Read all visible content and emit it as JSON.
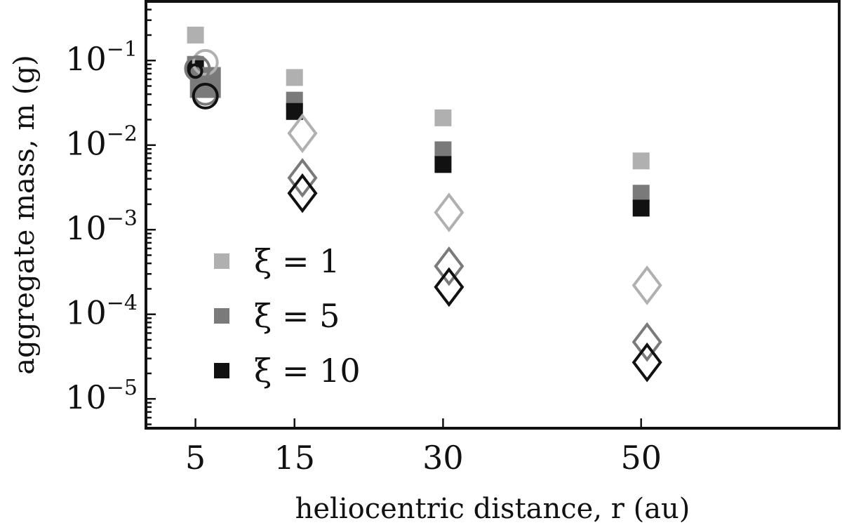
{
  "chart_data": {
    "type": "scatter",
    "xlabel": "heliocentric distance, r (au)",
    "ylabel": "aggregate mass, m (g)",
    "x_ticks": [
      {
        "value": 5,
        "label": "5"
      },
      {
        "value": 15,
        "label": "15"
      },
      {
        "value": 30,
        "label": "30"
      },
      {
        "value": 50,
        "label": "50"
      }
    ],
    "x_range": [
      0,
      70
    ],
    "y_scale": "log",
    "y_range": [
      4.5e-06,
      0.5
    ],
    "y_ticks": [
      {
        "value": 0.1,
        "base": "10",
        "exp": "−1"
      },
      {
        "value": 0.01,
        "base": "10",
        "exp": "−2"
      },
      {
        "value": 0.001,
        "base": "10",
        "exp": "−3"
      },
      {
        "value": 0.0001,
        "base": "10",
        "exp": "−4"
      },
      {
        "value": 1e-05,
        "base": "10",
        "exp": "−5"
      }
    ],
    "legend": {
      "position": "lower-left",
      "entries": [
        {
          "label": "ξ = 1",
          "color": "#b0b0b0"
        },
        {
          "label": "ξ = 5",
          "color": "#7a7a7a"
        },
        {
          "label": "ξ = 10",
          "color": "#111111"
        }
      ]
    },
    "series": [
      {
        "name": "ξ = 1",
        "color": "#b0b0b0",
        "marker": "square",
        "x": [
          5,
          15,
          30,
          50
        ],
        "y": [
          0.2,
          0.063,
          0.021,
          0.0065
        ]
      },
      {
        "name": "ξ = 5",
        "color": "#7a7a7a",
        "marker": "square",
        "x": [
          5,
          15,
          30,
          50
        ],
        "y": [
          0.09,
          0.034,
          0.0088,
          0.0027
        ]
      },
      {
        "name": "ξ = 10",
        "color": "#111111",
        "marker": "square",
        "x": [
          5,
          15,
          30,
          50
        ],
        "y": [
          0.08,
          0.025,
          0.0059,
          0.0018
        ]
      },
      {
        "name": "",
        "color": "#7a7a7a",
        "marker": "filled-square-large",
        "x": [
          6
        ],
        "y": [
          0.055
        ]
      },
      {
        "name": "",
        "color": "#b0b0b0",
        "marker": "open-circle",
        "x": [
          6,
          15.8,
          30.6,
          50.6
        ],
        "y": [
          0.095,
          0.0138,
          0.0016,
          0.00022
        ],
        "shapes": [
          "circle",
          "diamond",
          "diamond",
          "diamond"
        ]
      },
      {
        "name": "",
        "color": "#7a7a7a",
        "marker": "open-circle",
        "x": [
          5.2,
          6,
          15.8,
          30.6,
          50.6
        ],
        "y": [
          0.08,
          0.042,
          0.0041,
          0.00037,
          4.7e-05
        ],
        "shapes": [
          "circle",
          "circle",
          "diamond",
          "diamond",
          "diamond"
        ]
      },
      {
        "name": "",
        "color": "#111111",
        "marker": "open-circle",
        "x": [
          5,
          6,
          15.8,
          30.6,
          50.6
        ],
        "y": [
          0.075,
          0.038,
          0.0027,
          0.00021,
          2.7e-05
        ],
        "shapes": [
          "circle-small",
          "circle",
          "diamond",
          "diamond",
          "diamond"
        ]
      }
    ]
  }
}
